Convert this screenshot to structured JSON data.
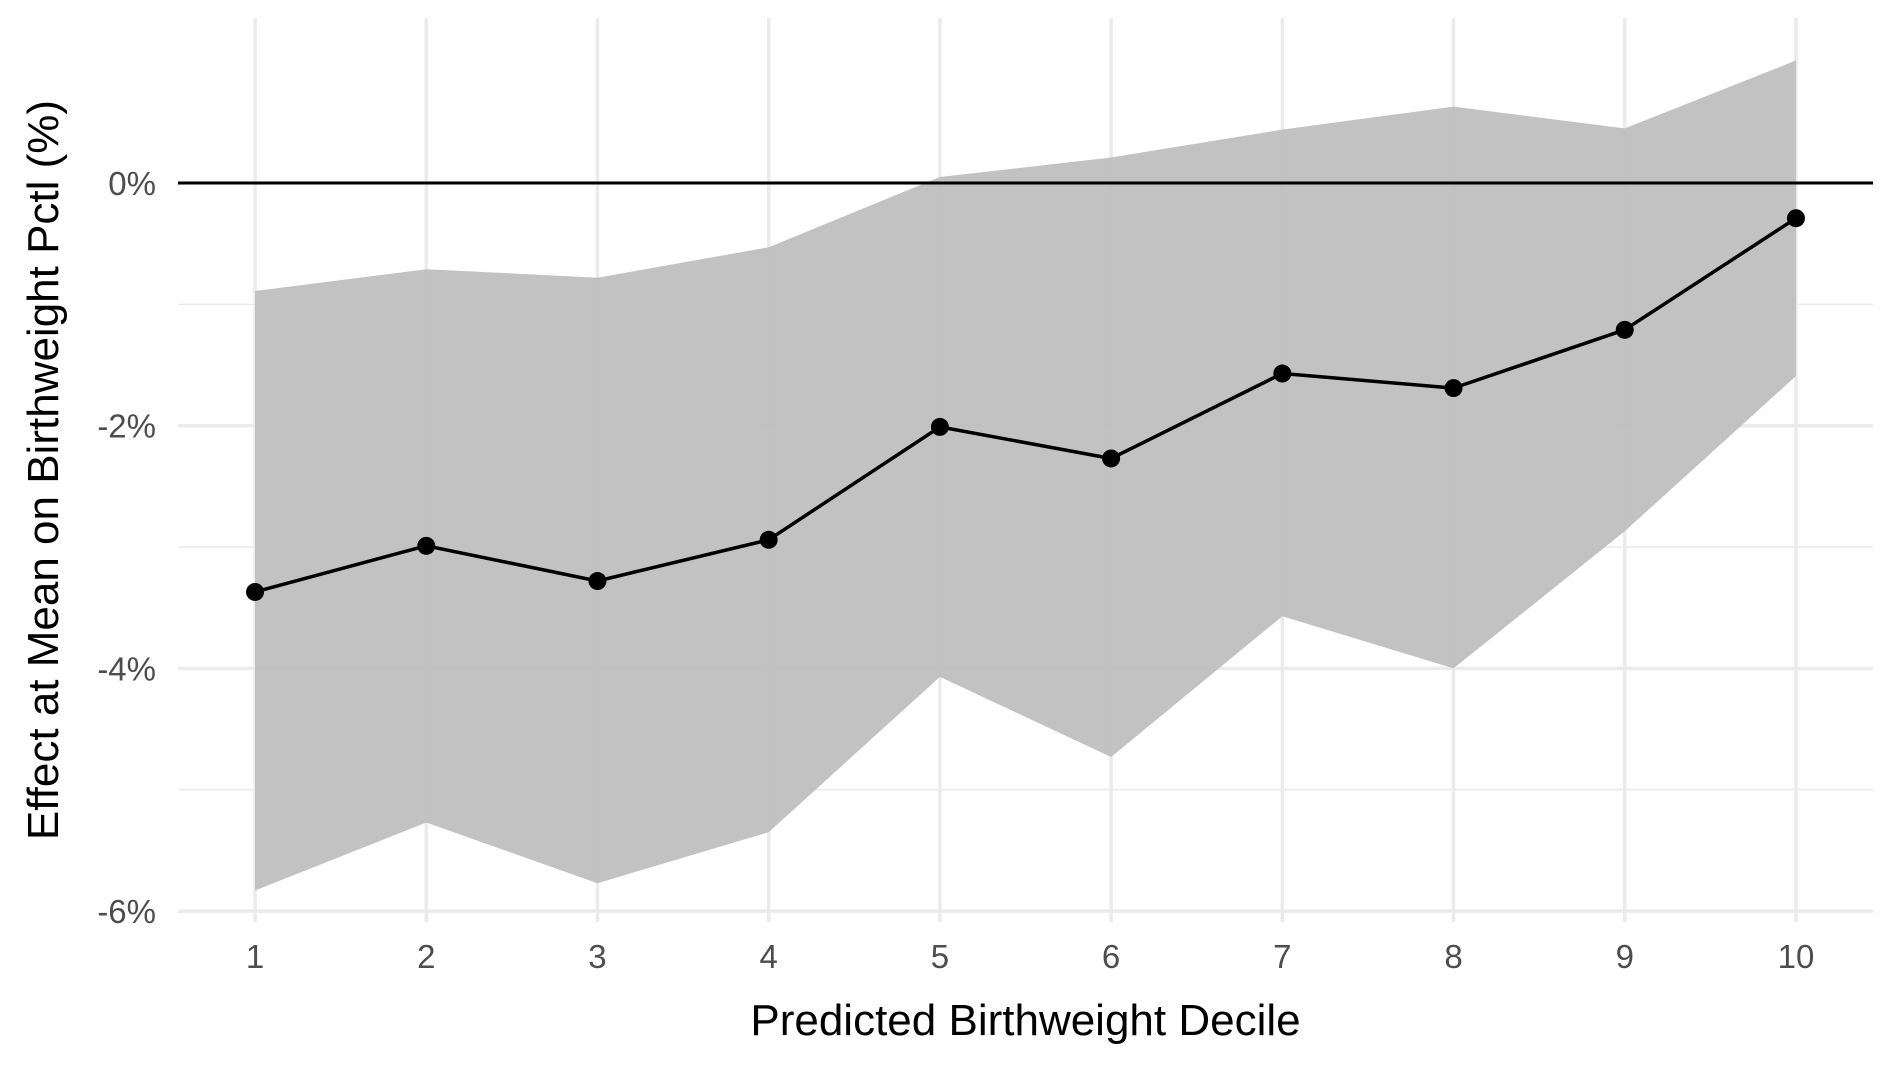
{
  "chart_data": {
    "type": "line",
    "title": "",
    "xlabel": "Predicted Birthweight Decile",
    "ylabel": "Effect at Mean on Birthweight Pctl (%)",
    "x": [
      1,
      2,
      3,
      4,
      5,
      6,
      7,
      8,
      9,
      10
    ],
    "x_tick_labels": [
      "1",
      "2",
      "3",
      "4",
      "5",
      "6",
      "7",
      "8",
      "9",
      "10"
    ],
    "y_ticks": [
      0,
      -2,
      -4,
      -6
    ],
    "y_tick_labels": [
      "0%",
      "-2%",
      "-4%",
      "-6%"
    ],
    "xlim": [
      0.55,
      10.45
    ],
    "ylim": [
      -6.09,
      1.36
    ],
    "series": [
      {
        "values": [
          -3.37,
          -2.99,
          -3.28,
          -2.94,
          -2.01,
          -2.27,
          -1.57,
          -1.69,
          -1.21,
          -0.29
        ],
        "lower": [
          -5.83,
          -5.27,
          -5.77,
          -5.35,
          -4.07,
          -4.73,
          -3.57,
          -4.0,
          -2.87,
          -1.59
        ],
        "upper": [
          -0.89,
          -0.71,
          -0.78,
          -0.53,
          0.05,
          0.21,
          0.44,
          0.63,
          0.45,
          1.01
        ]
      }
    ],
    "reference_line_y": 0,
    "grid": true,
    "colors": {
      "line": "#000000",
      "ribbon": "#bfbfbf",
      "grid": "#ebebeb",
      "reference": "#000000",
      "tick_text": "#4d4d4d"
    }
  }
}
